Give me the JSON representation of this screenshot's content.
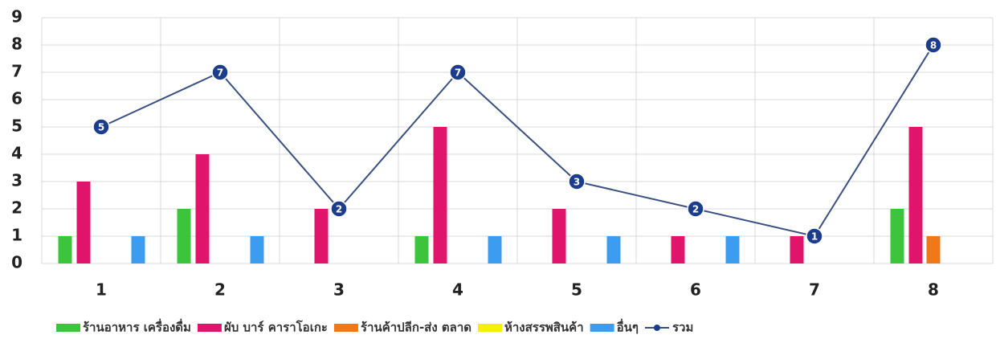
{
  "chart_data": {
    "type": "bar",
    "categories": [
      "1",
      "2",
      "3",
      "4",
      "5",
      "6",
      "7",
      "8"
    ],
    "series": [
      {
        "name": "ร้านอาหาร เครื่องดื่ม",
        "color": "#3cc43c",
        "values": [
          1,
          2,
          0,
          1,
          0,
          0,
          0,
          2
        ]
      },
      {
        "name": "ผับ บาร์ คาราโอเกะ",
        "color": "#e0146a",
        "values": [
          3,
          4,
          2,
          5,
          2,
          1,
          1,
          5
        ]
      },
      {
        "name": "ร้านค้าปลีก-ส่ง ตลาด",
        "color": "#f07818",
        "values": [
          0,
          0,
          0,
          0,
          0,
          0,
          0,
          1
        ]
      },
      {
        "name": "ห้างสรรพสินค้า",
        "color": "#f4f000",
        "values": [
          0,
          0,
          0,
          0,
          0,
          0,
          0,
          0
        ]
      },
      {
        "name": "อื่นๆ",
        "color": "#3c9cf0",
        "values": [
          1,
          1,
          0,
          1,
          1,
          1,
          0,
          0
        ]
      },
      {
        "name": "รวม",
        "type": "line",
        "color": "#1c3c8c",
        "values": [
          5,
          7,
          2,
          7,
          3,
          2,
          1,
          8
        ]
      }
    ],
    "ylim": [
      0,
      9
    ],
    "yticks": [
      0,
      1,
      2,
      3,
      4,
      5,
      6,
      7,
      8,
      9
    ],
    "grid": true,
    "legend": "bottom"
  }
}
